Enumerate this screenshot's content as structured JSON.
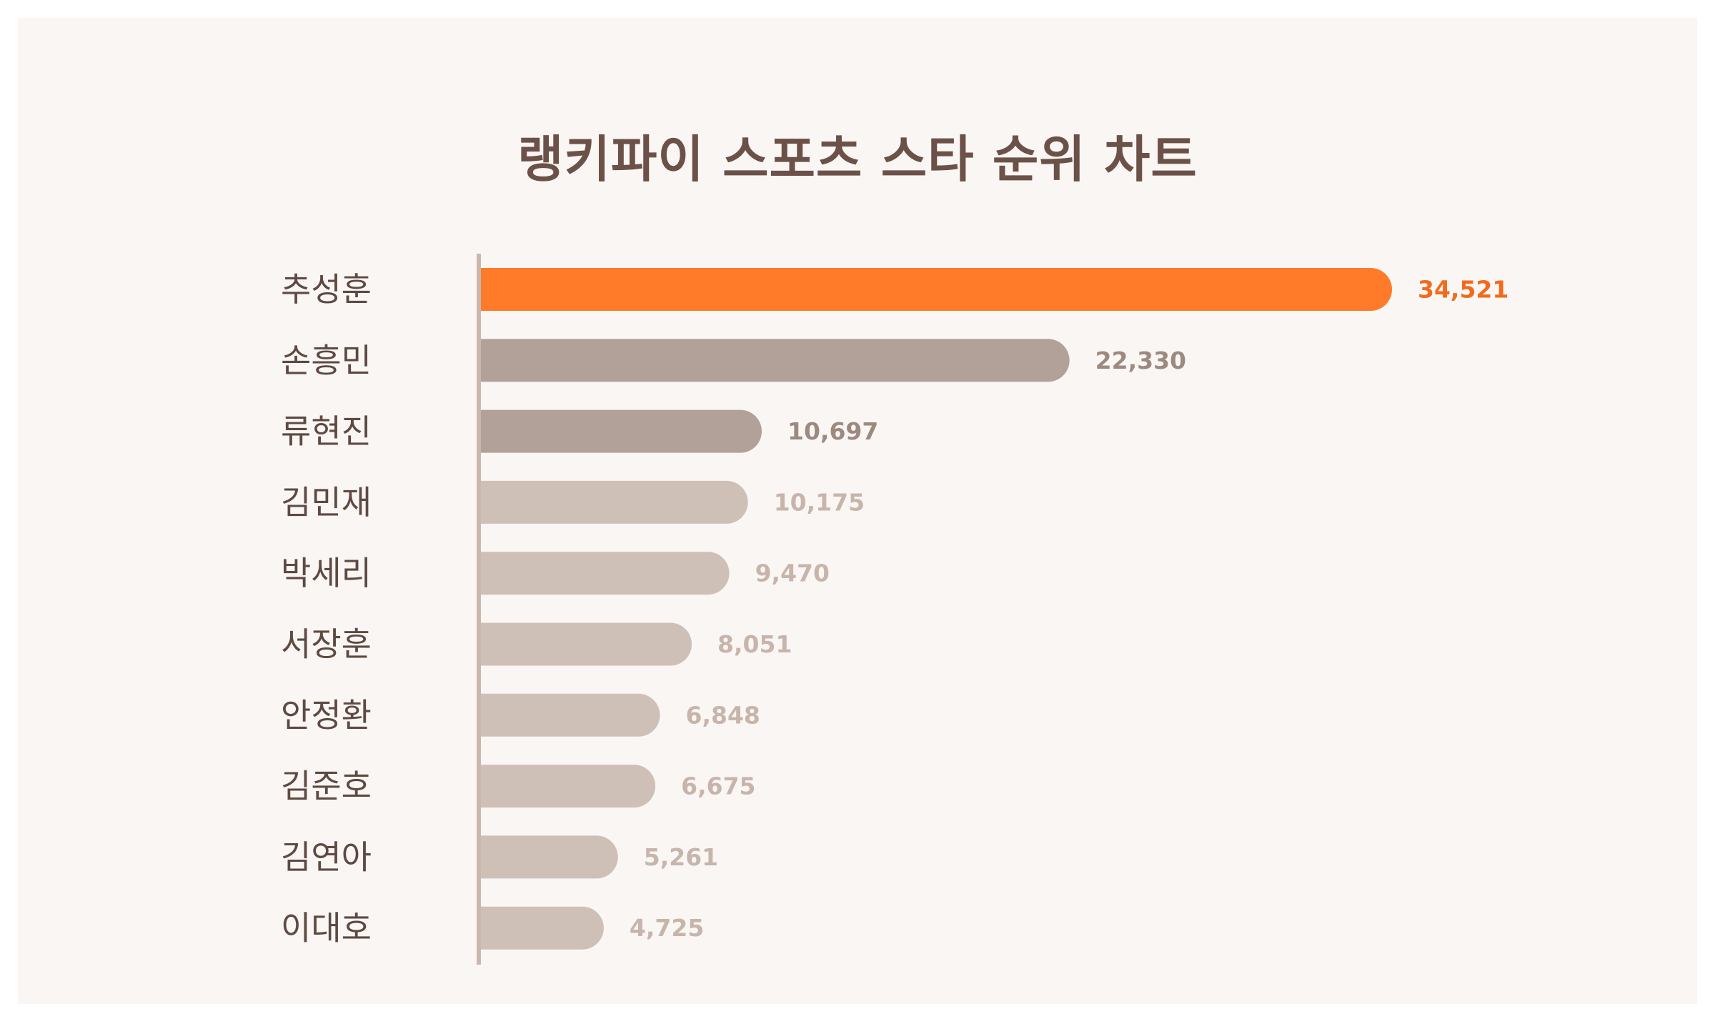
{
  "chart_data": {
    "type": "bar",
    "orientation": "horizontal",
    "title": "랭키파이 스포츠 스타 순위 차트",
    "categories": [
      "추성훈",
      "손흥민",
      "류현진",
      "김민재",
      "박세리",
      "서장훈",
      "안정환",
      "김준호",
      "김연아",
      "이대호"
    ],
    "values": [
      34521,
      22330,
      10697,
      10175,
      9470,
      8051,
      6848,
      6675,
      5261,
      4725
    ],
    "value_labels": [
      "34,521",
      "22,330",
      "10,697",
      "10,175",
      "9,470",
      "8,051",
      "6,848",
      "6,675",
      "5,261",
      "4,725"
    ],
    "xlim": [
      0,
      34521
    ],
    "grid": false,
    "legend": "none",
    "colors": {
      "highlight_bar": "#ff7a29",
      "highlight_label": "#f26b1d",
      "second_tier_bar": "#b2a199",
      "second_tier_label": "#9c8a80",
      "other_bar": "#cfc0b7",
      "other_label": "#c7b5ab",
      "axis": "#c9b8ae",
      "background": "#faf6f4",
      "title": "#6b5148"
    }
  }
}
